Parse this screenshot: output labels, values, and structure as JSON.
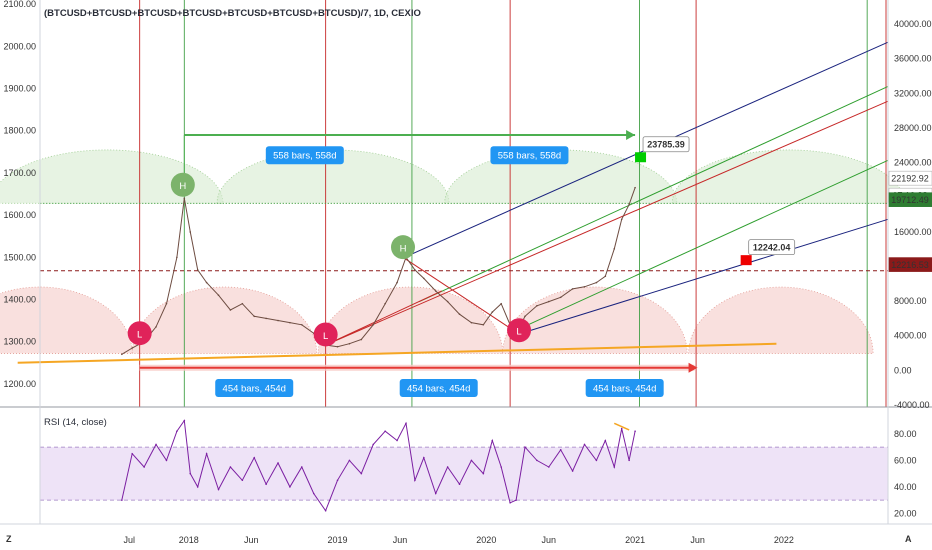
{
  "chart_data": {
    "type": "line",
    "title": "(BTCUSD+BTCUSD+BTCUSD+BTCUSD+BTCUSD+BTCUSD+BTCUSD)/7, 1D, CEXIO",
    "x_ticks": [
      "Jul",
      "2018",
      "Jun",
      "2019",
      "Jun",
      "2020",
      "Jun",
      "2021",
      "Jun",
      "2022"
    ],
    "left_axis_ticks": [
      "2100.00",
      "2000.00",
      "1900.00",
      "1800.00",
      "1700.00",
      "1600.00",
      "1500.00",
      "1400.00",
      "1300.00",
      "1200.00"
    ],
    "right_axis_ticks": [
      "40000.00",
      "36000.00",
      "32000.00",
      "28000.00",
      "24000.00",
      "20000.00",
      "16000.00",
      "12000.00",
      "8000.00",
      "4000.00",
      "0.00",
      "-4000.00"
    ],
    "price_badges": [
      {
        "text": "22192.92",
        "color": "#ffffff",
        "text_color": "#333333"
      },
      {
        "text": "17:10:38",
        "color": "#ffffff",
        "text_color": "#333333"
      },
      {
        "text": "19712.49",
        "color": "#2e7d32",
        "text_color": "#ffffff"
      },
      {
        "text": "12216.53",
        "color": "#8b1a1a",
        "text_color": "#ffffff"
      }
    ],
    "price_series": [
      [
        2017.55,
        1270
      ],
      [
        2017.62,
        1285
      ],
      [
        2017.7,
        1300
      ],
      [
        2017.78,
        1335
      ],
      [
        2017.85,
        1390
      ],
      [
        2017.92,
        1500
      ],
      [
        2017.97,
        1640
      ],
      [
        2018.01,
        1560
      ],
      [
        2018.06,
        1470
      ],
      [
        2018.12,
        1440
      ],
      [
        2018.2,
        1410
      ],
      [
        2018.28,
        1375
      ],
      [
        2018.36,
        1390
      ],
      [
        2018.44,
        1360
      ],
      [
        2018.52,
        1355
      ],
      [
        2018.6,
        1350
      ],
      [
        2018.68,
        1345
      ],
      [
        2018.76,
        1340
      ],
      [
        2018.84,
        1320
      ],
      [
        2018.92,
        1292
      ],
      [
        2019.0,
        1288
      ],
      [
        2019.08,
        1295
      ],
      [
        2019.16,
        1305
      ],
      [
        2019.24,
        1340
      ],
      [
        2019.32,
        1390
      ],
      [
        2019.4,
        1440
      ],
      [
        2019.46,
        1500
      ],
      [
        2019.52,
        1470
      ],
      [
        2019.58,
        1450
      ],
      [
        2019.66,
        1420
      ],
      [
        2019.74,
        1395
      ],
      [
        2019.82,
        1365
      ],
      [
        2019.9,
        1345
      ],
      [
        2019.98,
        1340
      ],
      [
        2020.04,
        1370
      ],
      [
        2020.1,
        1390
      ],
      [
        2020.16,
        1340
      ],
      [
        2020.2,
        1318
      ],
      [
        2020.26,
        1360
      ],
      [
        2020.34,
        1385
      ],
      [
        2020.42,
        1395
      ],
      [
        2020.5,
        1405
      ],
      [
        2020.58,
        1425
      ],
      [
        2020.66,
        1430
      ],
      [
        2020.74,
        1440
      ],
      [
        2020.8,
        1455
      ],
      [
        2020.86,
        1520
      ],
      [
        2020.91,
        1590
      ],
      [
        2020.96,
        1625
      ],
      [
        2021.0,
        1665
      ]
    ],
    "rsi": {
      "title": "RSI (14, close)",
      "ticks": [
        "80.00",
        "60.00",
        "40.00",
        "20.00"
      ],
      "upper_band": 70,
      "lower_band": 30,
      "values": [
        [
          2017.55,
          30
        ],
        [
          2017.62,
          65
        ],
        [
          2017.7,
          55
        ],
        [
          2017.78,
          72
        ],
        [
          2017.85,
          60
        ],
        [
          2017.92,
          82
        ],
        [
          2017.97,
          90
        ],
        [
          2018.01,
          50
        ],
        [
          2018.06,
          40
        ],
        [
          2018.12,
          65
        ],
        [
          2018.2,
          38
        ],
        [
          2018.28,
          55
        ],
        [
          2018.36,
          45
        ],
        [
          2018.44,
          62
        ],
        [
          2018.52,
          42
        ],
        [
          2018.6,
          58
        ],
        [
          2018.68,
          40
        ],
        [
          2018.76,
          55
        ],
        [
          2018.84,
          35
        ],
        [
          2018.92,
          22
        ],
        [
          2019.0,
          45
        ],
        [
          2019.08,
          60
        ],
        [
          2019.16,
          50
        ],
        [
          2019.24,
          72
        ],
        [
          2019.32,
          82
        ],
        [
          2019.4,
          75
        ],
        [
          2019.46,
          88
        ],
        [
          2019.52,
          45
        ],
        [
          2019.58,
          62
        ],
        [
          2019.66,
          35
        ],
        [
          2019.74,
          55
        ],
        [
          2019.82,
          42
        ],
        [
          2019.9,
          60
        ],
        [
          2019.98,
          50
        ],
        [
          2020.04,
          75
        ],
        [
          2020.1,
          55
        ],
        [
          2020.16,
          28
        ],
        [
          2020.2,
          30
        ],
        [
          2020.26,
          70
        ],
        [
          2020.34,
          60
        ],
        [
          2020.42,
          55
        ],
        [
          2020.5,
          68
        ],
        [
          2020.58,
          52
        ],
        [
          2020.66,
          72
        ],
        [
          2020.74,
          60
        ],
        [
          2020.8,
          75
        ],
        [
          2020.86,
          55
        ],
        [
          2020.91,
          84
        ],
        [
          2020.96,
          60
        ],
        [
          2021.0,
          82
        ]
      ]
    },
    "markers": [
      {
        "type": "H",
        "x": 2017.96,
        "y": 1672,
        "color": "#7cb36b"
      },
      {
        "type": "H",
        "x": 2019.44,
        "y": 1524,
        "color": "#7cb36b"
      },
      {
        "type": "L",
        "x": 2017.67,
        "y": 1320,
        "color": "#e0235a"
      },
      {
        "type": "L",
        "x": 2018.92,
        "y": 1317,
        "color": "#e0235a"
      },
      {
        "type": "L",
        "x": 2020.22,
        "y": 1327,
        "color": "#e0235a"
      }
    ],
    "annotations": [
      {
        "text": "558 bars, 558d",
        "x": 2018.78,
        "y": 1742
      },
      {
        "text": "558 bars, 558d",
        "x": 2020.29,
        "y": 1742
      },
      {
        "text": "454 bars, 454d",
        "x": 2018.44,
        "y": 1190
      },
      {
        "text": "454 bars, 454d",
        "x": 2019.68,
        "y": 1190
      },
      {
        "text": "454 bars, 454d",
        "x": 2020.93,
        "y": 1190
      }
    ],
    "callouts": [
      {
        "text": "23785.39",
        "x": 2021.04,
        "y": 1768,
        "color": "#9c27b0",
        "flag": "#00cc00"
      },
      {
        "text": "12242.04",
        "x": 2021.75,
        "y": 1524,
        "color": "#e0235a",
        "flag": "#ee0000"
      }
    ],
    "x_range": [
      2017.0,
      2022.7
    ],
    "y_range": [
      1145,
      2110
    ],
    "rsi_range": [
      12,
      98
    ],
    "grid": false
  }
}
